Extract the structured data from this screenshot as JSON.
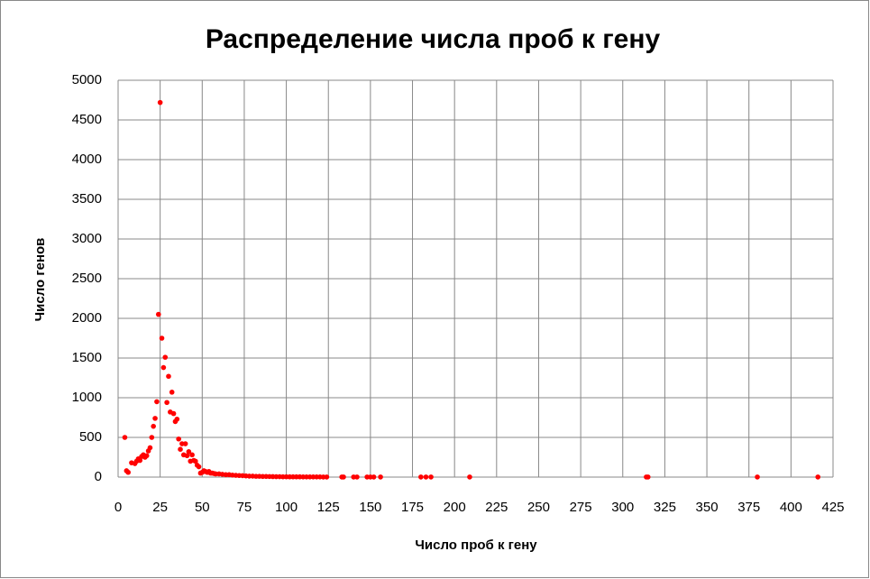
{
  "chart_data": {
    "type": "scatter",
    "title": "Распределение числа проб к гену",
    "x_label": "Число проб к гену",
    "y_label": "Число генов",
    "series": [
      {
        "name": "Число генов",
        "color": "#ff0000",
        "x": [
          4,
          5,
          6,
          8,
          10,
          11,
          12,
          13,
          14,
          15,
          16,
          17,
          18,
          19,
          20,
          21,
          22,
          23,
          24,
          25,
          26,
          27,
          28,
          29,
          30,
          31,
          32,
          33,
          34,
          35,
          36,
          37,
          38,
          39,
          40,
          41,
          42,
          43,
          44,
          45,
          46,
          47,
          48,
          49,
          50,
          51,
          52,
          53,
          54,
          55,
          56,
          57,
          58,
          60,
          62,
          64,
          66,
          68,
          70,
          72,
          74,
          76,
          78,
          80,
          82,
          84,
          86,
          88,
          90,
          92,
          94,
          96,
          98,
          100,
          102,
          104,
          106,
          108,
          110,
          112,
          114,
          116,
          118,
          120,
          122,
          124,
          133,
          134,
          140,
          142,
          148,
          150,
          152,
          156,
          180,
          183,
          186,
          209,
          314,
          315,
          380,
          416
        ],
        "values": [
          500,
          80,
          60,
          180,
          170,
          200,
          230,
          210,
          260,
          280,
          250,
          270,
          330,
          370,
          500,
          640,
          740,
          950,
          2050,
          4720,
          1750,
          1380,
          1510,
          940,
          1270,
          820,
          1070,
          800,
          700,
          730,
          480,
          350,
          420,
          280,
          420,
          270,
          320,
          200,
          280,
          210,
          200,
          150,
          130,
          50,
          60,
          80,
          70,
          60,
          70,
          50,
          50,
          45,
          40,
          40,
          35,
          30,
          30,
          25,
          22,
          20,
          18,
          15,
          12,
          12,
          10,
          10,
          8,
          8,
          7,
          6,
          5,
          5,
          4,
          4,
          3,
          3,
          3,
          3,
          2,
          2,
          2,
          2,
          2,
          2,
          1,
          1,
          1,
          1,
          1,
          1,
          1,
          1,
          1,
          1,
          1,
          1,
          1,
          1,
          1,
          1,
          1,
          1
        ]
      }
    ],
    "xlim": [
      0,
      425
    ],
    "xticks": [
      0,
      25,
      50,
      75,
      100,
      125,
      150,
      175,
      200,
      225,
      250,
      275,
      300,
      325,
      350,
      375,
      400,
      425
    ],
    "ylim": [
      0,
      5000
    ],
    "yticks": [
      0,
      500,
      1000,
      1500,
      2000,
      2500,
      3000,
      3500,
      4000,
      4500,
      5000
    ],
    "grid": true
  }
}
